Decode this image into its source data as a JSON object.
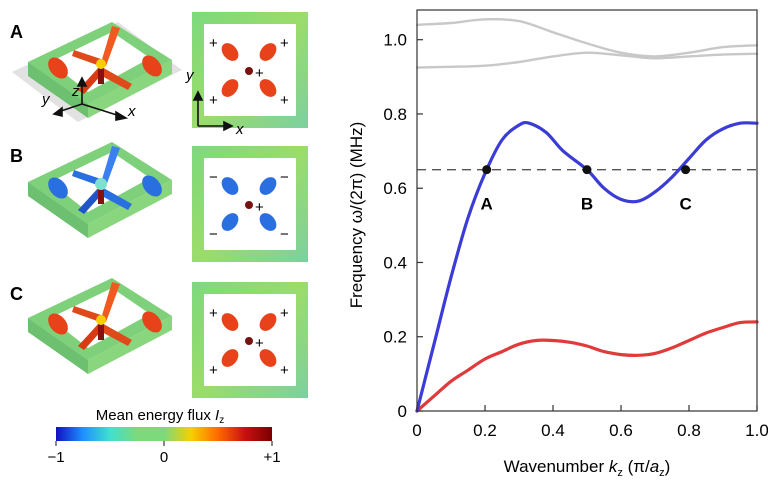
{
  "panels": {
    "A": {
      "label": "A",
      "signs": [
        "+",
        "+",
        "+",
        "+"
      ],
      "center_sign": "+",
      "axis_labels": {
        "x": "x",
        "y": "y",
        "z": "z"
      }
    },
    "B": {
      "label": "B",
      "signs": [
        "−",
        "−",
        "−",
        "−"
      ],
      "center_sign": "+"
    },
    "C": {
      "label": "C",
      "signs": [
        "+",
        "+",
        "+",
        "+"
      ],
      "center_sign": "+"
    }
  },
  "colorbar": {
    "title": "Mean energy flux ",
    "title_symbol": "I",
    "title_sub": "z",
    "ticks": [
      "−1",
      "0",
      "+1"
    ],
    "stops": [
      "#1010c0",
      "#1e90ff",
      "#40e0d0",
      "#7cd97c",
      "#7cd97c",
      "#f5d000",
      "#ff6a00",
      "#c81010",
      "#7a0000"
    ]
  },
  "colors": {
    "field_green": "#7ed07a",
    "hot": "#e8421a",
    "cold": "#2a6fe0",
    "center_dot": "#7a1010"
  },
  "chart_data": {
    "type": "line",
    "xlabel_pre": "Wavenumber ",
    "xlabel_sym": "k",
    "xlabel_sub": "z",
    "xlabel_post": " (π/",
    "xlabel_sym2": "a",
    "xlabel_sub2": "z",
    "xlabel_end": ")",
    "ylabel": "Frequency ω/(2π) (MHz)",
    "xlim": [
      0,
      1.0
    ],
    "ylim": [
      0,
      1.08
    ],
    "xticks": [
      "0",
      "0.2",
      "0.4",
      "0.6",
      "0.8",
      "1.0"
    ],
    "xtick_values": [
      0,
      0.2,
      0.4,
      0.6,
      0.8,
      1.0
    ],
    "yticks": [
      "0",
      "0.2",
      "0.4",
      "0.6",
      "0.8",
      "1.0"
    ],
    "ytick_values": [
      0,
      0.2,
      0.4,
      0.6,
      0.8,
      1.0
    ],
    "grid": false,
    "reference_line": {
      "y": 0.65,
      "style": "dashed"
    },
    "series": [
      {
        "color": "#3b3bd6",
        "x": [
          0,
          0.05,
          0.1,
          0.15,
          0.2,
          0.25,
          0.3,
          0.33,
          0.38,
          0.43,
          0.5,
          0.55,
          0.6,
          0.65,
          0.7,
          0.75,
          0.8,
          0.85,
          0.9,
          0.95,
          1.0
        ],
        "y": [
          0,
          0.18,
          0.36,
          0.52,
          0.64,
          0.73,
          0.77,
          0.775,
          0.75,
          0.7,
          0.65,
          0.6,
          0.57,
          0.565,
          0.59,
          0.63,
          0.68,
          0.73,
          0.76,
          0.775,
          0.775
        ]
      },
      {
        "color": "#e03a3a",
        "x": [
          0,
          0.05,
          0.1,
          0.15,
          0.2,
          0.25,
          0.3,
          0.35,
          0.4,
          0.45,
          0.5,
          0.55,
          0.6,
          0.65,
          0.7,
          0.75,
          0.8,
          0.85,
          0.9,
          0.95,
          1.0
        ],
        "y": [
          0,
          0.04,
          0.08,
          0.11,
          0.14,
          0.16,
          0.18,
          0.19,
          0.19,
          0.185,
          0.175,
          0.16,
          0.152,
          0.15,
          0.155,
          0.17,
          0.19,
          0.21,
          0.225,
          0.238,
          0.24
        ]
      },
      {
        "color": "#c8c8c8",
        "x": [
          0,
          0.1,
          0.2,
          0.3,
          0.4,
          0.5,
          0.6,
          0.7,
          0.8,
          0.9,
          1.0
        ],
        "y": [
          1.04,
          1.045,
          1.055,
          1.05,
          1.02,
          0.99,
          0.965,
          0.955,
          0.965,
          0.98,
          0.985
        ]
      },
      {
        "color": "#c8c8c8",
        "x": [
          0,
          0.1,
          0.2,
          0.3,
          0.4,
          0.5,
          0.6,
          0.7,
          0.8,
          0.9,
          1.0
        ],
        "y": [
          0.925,
          0.927,
          0.93,
          0.94,
          0.955,
          0.965,
          0.958,
          0.95,
          0.955,
          0.96,
          0.962
        ]
      }
    ],
    "points": [
      {
        "label": "A",
        "x": 0.205,
        "y": 0.65
      },
      {
        "label": "B",
        "x": 0.5,
        "y": 0.65
      },
      {
        "label": "C",
        "x": 0.79,
        "y": 0.65
      }
    ]
  }
}
